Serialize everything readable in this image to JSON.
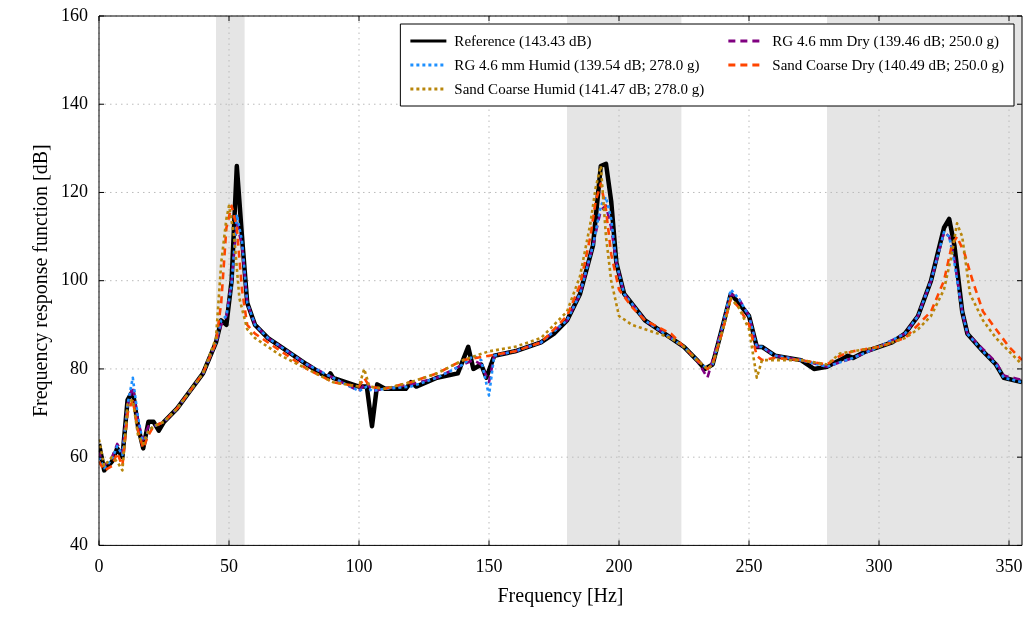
{
  "chart_data": {
    "type": "line",
    "xlabel": "Frequency [Hz]",
    "ylabel": "Frequency response function [dB]",
    "xlim": [
      0,
      355
    ],
    "ylim": [
      40,
      160
    ],
    "xticks": [
      0,
      50,
      100,
      150,
      200,
      250,
      300,
      350
    ],
    "yticks": [
      40,
      60,
      80,
      100,
      120,
      140,
      160
    ],
    "grid": true,
    "legend": "top right",
    "marker": "none",
    "bands": [
      {
        "axis": "x",
        "from": 45,
        "to": 56,
        "color": "#e5e5e5"
      },
      {
        "axis": "x",
        "from": 180,
        "to": 224,
        "color": "#e5e5e5"
      },
      {
        "axis": "x",
        "from": 280,
        "to": 355,
        "color": "#e5e5e5"
      }
    ],
    "series": [
      {
        "name": "Reference (143.43 dB)",
        "color": "#000000",
        "line_style": "solid",
        "x": [
          0,
          2,
          5,
          7,
          9,
          11,
          13,
          15,
          17,
          19,
          21,
          23,
          25,
          30,
          35,
          40,
          45,
          47,
          49,
          51,
          53,
          55,
          57,
          60,
          65,
          70,
          80,
          88,
          89,
          90,
          100,
          103,
          105,
          107,
          110,
          118,
          120,
          122,
          130,
          138,
          142,
          144,
          147,
          149,
          152,
          160,
          170,
          175,
          180,
          185,
          190,
          193,
          195,
          197,
          199,
          202,
          210,
          215,
          225,
          230,
          233,
          236,
          240,
          243,
          246,
          250,
          253,
          255,
          260,
          270,
          275,
          280,
          285,
          288,
          290,
          295,
          300,
          305,
          310,
          315,
          320,
          325,
          327,
          329,
          332,
          334,
          340,
          345,
          348,
          355
        ],
        "values": [
          63,
          57,
          59,
          62,
          60,
          73,
          75,
          67,
          62,
          68,
          68,
          66,
          68,
          71,
          75,
          79,
          86,
          91,
          90,
          100,
          126,
          110,
          95,
          90,
          87,
          85,
          81,
          78,
          79,
          78,
          76,
          76,
          67,
          76.5,
          75.5,
          75.5,
          77,
          76,
          78,
          79,
          85,
          80,
          81,
          78,
          83,
          84,
          86,
          88,
          91,
          97,
          108,
          126,
          126.5,
          118,
          104,
          97,
          91,
          89,
          85,
          82,
          80,
          81,
          90,
          97,
          95,
          92,
          85,
          85,
          83,
          82,
          80,
          80.5,
          82,
          83,
          82.5,
          84,
          85,
          86,
          88,
          92,
          100,
          112,
          114,
          108,
          93,
          88,
          84,
          81,
          78,
          77
        ]
      },
      {
        "name": "RG 4.6 mm Dry (139.46 dB; 250.0 g)",
        "color": "#800080",
        "line_style": "dashed",
        "x": [
          0,
          2,
          5,
          7,
          9,
          11,
          13,
          15,
          17,
          19,
          21,
          25,
          30,
          35,
          40,
          45,
          47,
          49,
          51,
          53,
          55,
          57,
          60,
          65,
          70,
          80,
          90,
          100,
          103,
          105,
          110,
          120,
          130,
          140,
          144,
          147,
          150,
          152,
          160,
          170,
          180,
          185,
          190,
          193,
          195,
          197,
          199,
          202,
          210,
          220,
          225,
          230,
          234,
          236,
          240,
          243,
          246,
          250,
          253,
          255,
          260,
          270,
          280,
          290,
          300,
          310,
          315,
          320,
          325,
          327,
          329,
          332,
          334,
          340,
          345,
          348,
          355
        ],
        "values": [
          61,
          58,
          60,
          63,
          61,
          72,
          76,
          68,
          64,
          67,
          67,
          68,
          71,
          75,
          79,
          86,
          90,
          92,
          100,
          113,
          108,
          95,
          90,
          87,
          85,
          81,
          78,
          75,
          77,
          75,
          75.5,
          76.5,
          78,
          81,
          82,
          81,
          77,
          83,
          84,
          86,
          91,
          97,
          108,
          116,
          117,
          112,
          104,
          97,
          91,
          87,
          85,
          82,
          78,
          82,
          90,
          97,
          96,
          92,
          85,
          85,
          83,
          82,
          80.5,
          82.5,
          85,
          88,
          92,
          100,
          111,
          110,
          105,
          93,
          88,
          84.5,
          81.5,
          78.5,
          77.5
        ]
      },
      {
        "name": "RG 4.6 mm Humid (139.54 dB; 278.0 g)",
        "color": "#1e90ff",
        "line_style": "dotted",
        "x": [
          0,
          2,
          5,
          7,
          9,
          11,
          13,
          15,
          17,
          19,
          21,
          25,
          30,
          35,
          40,
          45,
          47,
          49,
          51,
          53,
          55,
          57,
          60,
          65,
          70,
          80,
          90,
          100,
          103,
          105,
          110,
          120,
          130,
          140,
          144,
          147,
          150,
          152,
          160,
          170,
          180,
          185,
          190,
          193,
          195,
          197,
          199,
          202,
          210,
          220,
          225,
          230,
          234,
          236,
          240,
          243,
          246,
          250,
          253,
          255,
          260,
          270,
          280,
          290,
          300,
          310,
          315,
          320,
          325,
          327,
          329,
          332,
          334,
          340,
          345,
          348,
          355
        ],
        "values": [
          60,
          57.5,
          59.5,
          62.5,
          60.5,
          72,
          78,
          69,
          63,
          66,
          67,
          68,
          71,
          75,
          79,
          86,
          91,
          92,
          99,
          115,
          109,
          95,
          90,
          87,
          85,
          81,
          78,
          75,
          76,
          75,
          75.5,
          76,
          78,
          81,
          83,
          82,
          74,
          83,
          84,
          86,
          91,
          97,
          108,
          117,
          119,
          114,
          104,
          97,
          91,
          87,
          85,
          82,
          80,
          81,
          90,
          98,
          96,
          92,
          85,
          85,
          83,
          82,
          80.5,
          82.5,
          85,
          88,
          92,
          100,
          111,
          110,
          104,
          93,
          88,
          84,
          81,
          78,
          77
        ]
      },
      {
        "name": "Sand Coarse Dry (140.49 dB; 250.0 g)",
        "color": "#ff4500",
        "line_style": "dashed",
        "x": [
          0,
          2,
          5,
          7,
          9,
          11,
          13,
          15,
          17,
          19,
          21,
          25,
          30,
          35,
          40,
          45,
          47,
          49,
          51,
          53,
          55,
          57,
          60,
          65,
          70,
          80,
          90,
          100,
          102,
          104,
          110,
          120,
          130,
          140,
          150,
          160,
          170,
          180,
          185,
          189,
          191,
          193,
          195,
          197,
          200,
          205,
          210,
          220,
          225,
          230,
          234,
          236,
          240,
          243,
          246,
          250,
          253,
          255,
          260,
          270,
          280,
          285,
          290,
          300,
          310,
          315,
          320,
          325,
          328,
          330,
          333,
          336,
          340,
          345,
          350,
          355
        ],
        "values": [
          59,
          57,
          58,
          61,
          58,
          70,
          73,
          66,
          62,
          65,
          67,
          68,
          71,
          75,
          79,
          86,
          95,
          112,
          117,
          112,
          98,
          90,
          88,
          86,
          84,
          80,
          77,
          76,
          78,
          76,
          75.5,
          77,
          79,
          82,
          83,
          84,
          86,
          92,
          99,
          110,
          118,
          122,
          116,
          106,
          98,
          94,
          91,
          88,
          85,
          82,
          80,
          81,
          89,
          96,
          94,
          90,
          83,
          82,
          82.5,
          82,
          81,
          83,
          84,
          85,
          87,
          90,
          93,
          100,
          108,
          110,
          106,
          100,
          93,
          89,
          85,
          82
        ]
      },
      {
        "name": "Sand Coarse Humid (141.47 dB; 278.0 g)",
        "color": "#b8860b",
        "line_style": "dotted",
        "x": [
          0,
          2,
          5,
          7,
          9,
          11,
          13,
          15,
          17,
          19,
          21,
          25,
          30,
          35,
          40,
          45,
          47,
          49,
          50,
          52,
          54,
          57,
          60,
          65,
          70,
          80,
          90,
          100,
          102,
          104,
          110,
          120,
          130,
          140,
          150,
          160,
          170,
          180,
          185,
          189,
          191,
          193,
          195,
          197,
          200,
          205,
          210,
          220,
          225,
          230,
          234,
          236,
          240,
          243,
          246,
          250,
          253,
          255,
          260,
          270,
          280,
          285,
          290,
          300,
          310,
          315,
          320,
          325,
          328,
          330,
          332,
          335,
          340,
          345,
          350,
          355
        ],
        "values": [
          64,
          58,
          60,
          59,
          57,
          72,
          73,
          65,
          63,
          66,
          67,
          68,
          71,
          75,
          79,
          87,
          104,
          114,
          117,
          110,
          96,
          89,
          87,
          85,
          83,
          80,
          77,
          76,
          80,
          76,
          75.5,
          77,
          79,
          82,
          84,
          85,
          87,
          93,
          101,
          113,
          121,
          126,
          110,
          100,
          92,
          90,
          89,
          87,
          85,
          82,
          80,
          81,
          89,
          96,
          94,
          89,
          78,
          82,
          82,
          82,
          81,
          83.5,
          84,
          85,
          87,
          89,
          92,
          98,
          106,
          113,
          110,
          97,
          91,
          87,
          84,
          81
        ]
      }
    ]
  }
}
